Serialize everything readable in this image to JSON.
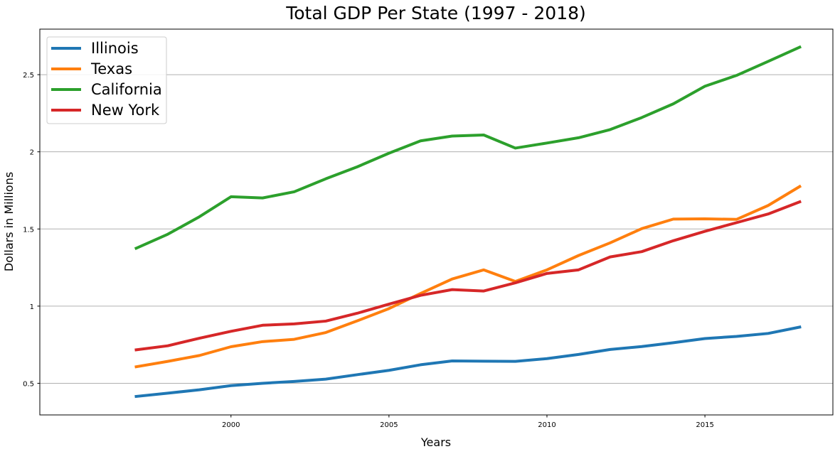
{
  "chart_data": {
    "type": "line",
    "title": "Total GDP Per State (1997 - 2018)",
    "xlabel": "Years",
    "ylabel": "Dollars in Millions",
    "x": [
      1997,
      1998,
      1999,
      2000,
      2001,
      2002,
      2003,
      2004,
      2005,
      2006,
      2007,
      2008,
      2009,
      2010,
      2011,
      2012,
      2013,
      2014,
      2015,
      2016,
      2017,
      2018
    ],
    "xlim": [
      1993.95,
      2019.05
    ],
    "ylim": [
      0.295,
      2.795
    ],
    "xticks": [
      2000,
      2005,
      2010,
      2015
    ],
    "xtick_labels": [
      "2000",
      "2005",
      "2010",
      "2015"
    ],
    "yticks": [
      0.5,
      1.0,
      1.5,
      2.0,
      2.5
    ],
    "ytick_labels": [
      "0.5",
      "1",
      "1.5",
      "2",
      "2.5"
    ],
    "grid": "horizontal",
    "legend_position": "top-left",
    "series": [
      {
        "name": "Illinois",
        "color": "#1f77b4",
        "values": [
          0.415,
          0.436,
          0.458,
          0.485,
          0.5,
          0.512,
          0.527,
          0.556,
          0.584,
          0.62,
          0.645,
          0.643,
          0.642,
          0.66,
          0.687,
          0.719,
          0.738,
          0.763,
          0.79,
          0.804,
          0.823,
          0.864
        ]
      },
      {
        "name": "Texas",
        "color": "#ff7f0e",
        "values": [
          0.607,
          0.642,
          0.68,
          0.737,
          0.77,
          0.785,
          0.829,
          0.905,
          0.984,
          1.082,
          1.176,
          1.235,
          1.16,
          1.235,
          1.328,
          1.41,
          1.502,
          1.564,
          1.566,
          1.562,
          1.652,
          1.775
        ]
      },
      {
        "name": "California",
        "color": "#2ca02c",
        "values": [
          1.375,
          1.466,
          1.579,
          1.709,
          1.701,
          1.741,
          1.825,
          1.903,
          1.991,
          2.071,
          2.102,
          2.109,
          2.024,
          2.057,
          2.091,
          2.144,
          2.222,
          2.311,
          2.425,
          2.495,
          2.586,
          2.678
        ]
      },
      {
        "name": "New York",
        "color": "#d62728",
        "values": [
          0.717,
          0.743,
          0.792,
          0.837,
          0.876,
          0.885,
          0.903,
          0.954,
          1.013,
          1.07,
          1.107,
          1.098,
          1.151,
          1.212,
          1.235,
          1.319,
          1.353,
          1.424,
          1.485,
          1.541,
          1.597,
          1.676
        ]
      }
    ]
  }
}
